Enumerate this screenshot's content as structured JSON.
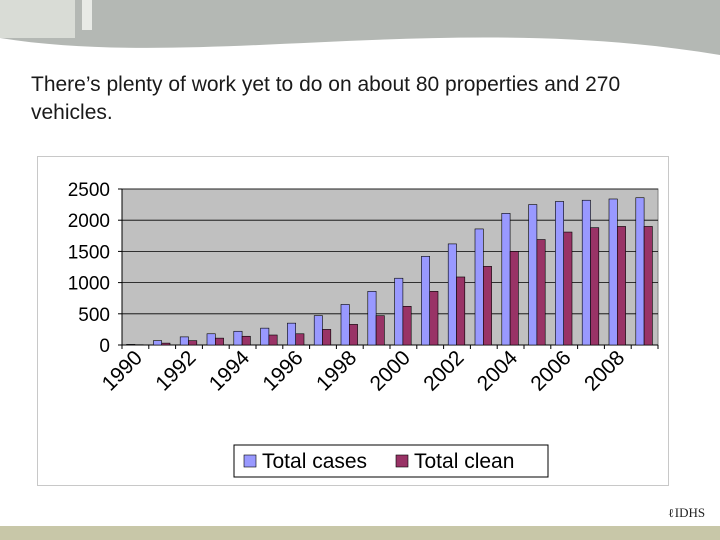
{
  "slide": {
    "headline": "There’s plenty of work yet to do on about 80 properties and 270 vehicles.",
    "logo_text": "IDHS",
    "logo_mark": "ℓ"
  },
  "colors": {
    "banner_grey": "#b4b8b4",
    "banner_light": "#d9dcd6",
    "plot_bg": "#c0c0c0",
    "series_total_cases": "#9999ff",
    "series_total_clean": "#993366",
    "footer_bar": "#c8c7a8"
  },
  "chart_data": {
    "type": "bar",
    "title": "",
    "xlabel": "",
    "ylabel": "",
    "ylim": [
      0,
      2500
    ],
    "yticks": [
      0,
      500,
      1000,
      1500,
      2000,
      2500
    ],
    "grid": true,
    "legend_position": "bottom",
    "categories": [
      "1990",
      "1991",
      "1992",
      "1993",
      "1994",
      "1995",
      "1996",
      "1997",
      "1998",
      "1999",
      "2000",
      "2001",
      "2002",
      "2003",
      "2004",
      "2005",
      "2006",
      "2007",
      "2008",
      "2009"
    ],
    "xtick_labels": [
      "1990",
      "1992",
      "1994",
      "1996",
      "1998",
      "2000",
      "2002",
      "2004",
      "2006",
      "2008"
    ],
    "series": [
      {
        "name": "Total cases",
        "values": [
          10,
          70,
          130,
          180,
          220,
          270,
          350,
          470,
          650,
          860,
          1070,
          1420,
          1620,
          1860,
          2110,
          2250,
          2300,
          2320,
          2340,
          2360
        ]
      },
      {
        "name": "Total clean",
        "values": [
          5,
          30,
          70,
          110,
          140,
          160,
          180,
          250,
          330,
          470,
          620,
          860,
          1090,
          1260,
          1500,
          1690,
          1810,
          1880,
          1900,
          1900
        ]
      }
    ]
  }
}
